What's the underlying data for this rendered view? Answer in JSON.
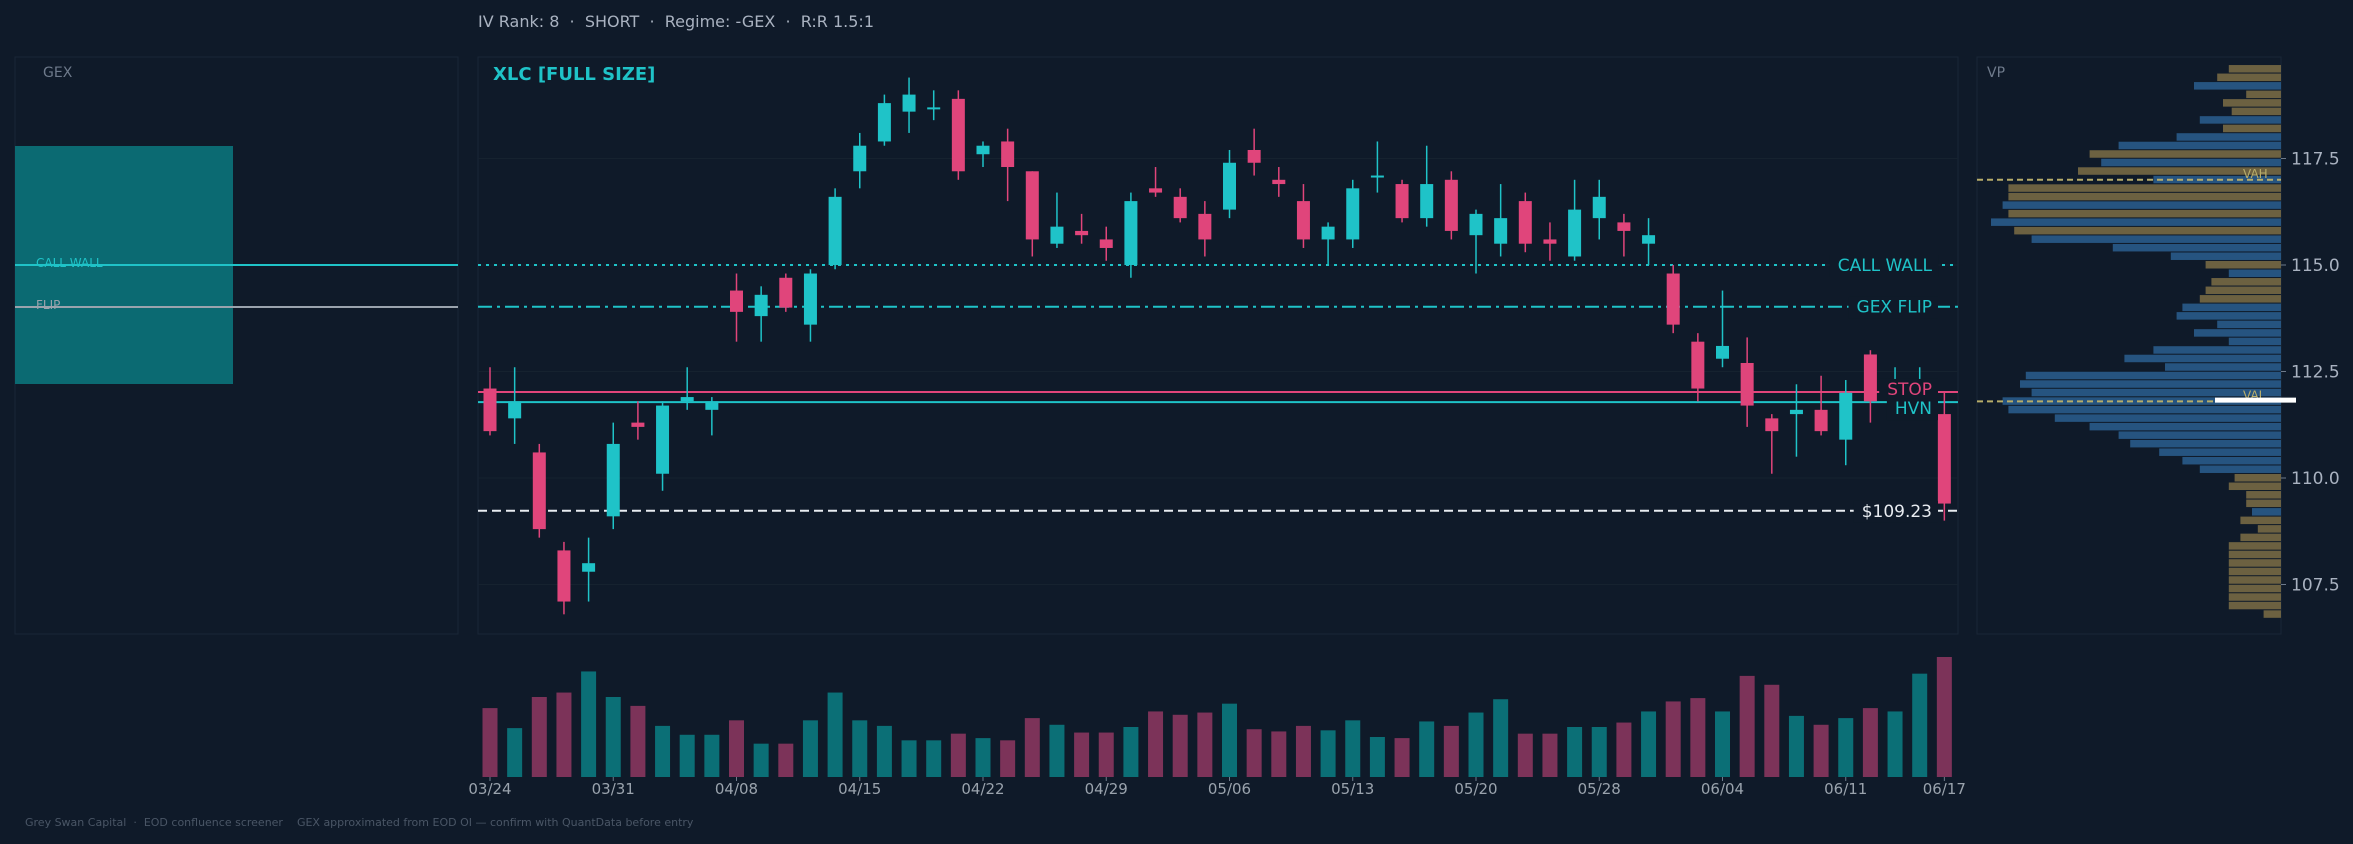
{
  "header": {
    "summary": "IV Rank: 8  ·  SHORT  ·  Regime: -GEX  ·  R:R 1.5:1"
  },
  "footer": {
    "text": "Grey Swan Capital  ·  EOD confluence screener    GEX approximated from EOD OI — confirm with QuantData before entry"
  },
  "colors": {
    "background": "#0f1a29",
    "up": "#1fc3c8",
    "down": "#e0457b",
    "stop": "#e0457b",
    "hvn": "#1fc3c8",
    "call_wall": "#1fc3c8",
    "flip": "#1fc3c8",
    "price_line": "#e8ecf1",
    "gex_bar": "#0b6a72",
    "vp_blue": "#2a5f8f",
    "vp_gold": "#7d6f45"
  },
  "gex_panel": {
    "title": "GEX",
    "call_wall_label": "CALL WALL",
    "flip_label": "FLIP"
  },
  "vp_panel": {
    "title": "VP",
    "vah_label": "VAH",
    "val_label": "VAL",
    "vah_price": 117.0,
    "val_price": 111.8
  },
  "chart_data": {
    "type": "candlestick",
    "title": "XLC  [FULL SIZE]",
    "ylim": [
      106.5,
      120.0
    ],
    "yticks": [
      107.5,
      110.0,
      112.5,
      115.0,
      117.5
    ],
    "xtick_labels": [
      "03/24",
      "03/31",
      "04/08",
      "04/15",
      "04/22",
      "04/29",
      "05/06",
      "05/13",
      "05/20",
      "05/28",
      "06/04",
      "06/11",
      "06/17"
    ],
    "xtick_index": [
      0,
      5,
      10,
      15,
      20,
      25,
      30,
      35,
      40,
      45,
      50,
      55,
      59
    ],
    "levels": [
      {
        "name": "CALL WALL",
        "price": 115.0,
        "style": "dotted"
      },
      {
        "name": "GEX FLIP",
        "price": 114.02,
        "style": "dashdot"
      },
      {
        "name": "STOP",
        "price": 112.02,
        "style": "solid"
      },
      {
        "name": "HVN",
        "price": 111.78,
        "style": "solid"
      },
      {
        "name": "$109.23",
        "price": 109.23,
        "style": "dashed"
      }
    ],
    "ohlc": [
      [
        112.1,
        112.6,
        111.0,
        111.1
      ],
      [
        111.4,
        112.6,
        110.8,
        111.8
      ],
      [
        110.6,
        110.8,
        108.6,
        108.8
      ],
      [
        108.3,
        108.5,
        106.8,
        107.1
      ],
      [
        107.8,
        108.6,
        107.1,
        108.0
      ],
      [
        109.1,
        111.3,
        108.8,
        110.8
      ],
      [
        111.3,
        111.8,
        110.9,
        111.2
      ],
      [
        110.1,
        111.8,
        109.7,
        111.7
      ],
      [
        111.8,
        112.6,
        111.6,
        111.9
      ],
      [
        111.6,
        111.9,
        111.0,
        111.8
      ],
      [
        114.4,
        114.8,
        113.2,
        113.9
      ],
      [
        113.8,
        114.5,
        113.2,
        114.3
      ],
      [
        114.7,
        114.8,
        113.9,
        114.0
      ],
      [
        113.6,
        114.9,
        113.2,
        114.8
      ],
      [
        115.0,
        116.8,
        114.9,
        116.6
      ],
      [
        117.2,
        118.1,
        116.8,
        117.8
      ],
      [
        117.9,
        119.0,
        117.8,
        118.8
      ],
      [
        118.6,
        119.4,
        118.1,
        119.0
      ],
      [
        118.7,
        119.1,
        118.4,
        118.7
      ],
      [
        118.9,
        119.1,
        117.0,
        117.2
      ],
      [
        117.6,
        117.9,
        117.3,
        117.8
      ],
      [
        117.9,
        118.2,
        116.5,
        117.3
      ],
      [
        117.2,
        117.2,
        115.2,
        115.6
      ],
      [
        115.5,
        116.7,
        115.4,
        115.9
      ],
      [
        115.8,
        116.2,
        115.5,
        115.7
      ],
      [
        115.6,
        115.9,
        115.1,
        115.4
      ],
      [
        115.0,
        116.7,
        114.7,
        116.5
      ],
      [
        116.8,
        117.3,
        116.6,
        116.7
      ],
      [
        116.6,
        116.8,
        116.0,
        116.1
      ],
      [
        116.2,
        116.5,
        115.2,
        115.6
      ],
      [
        116.3,
        117.7,
        116.1,
        117.4
      ],
      [
        117.7,
        118.2,
        117.1,
        117.4
      ],
      [
        117.0,
        117.3,
        116.6,
        116.9
      ],
      [
        116.5,
        116.9,
        115.4,
        115.6
      ],
      [
        115.6,
        116.0,
        115.0,
        115.9
      ],
      [
        115.6,
        117.0,
        115.4,
        116.8
      ],
      [
        117.1,
        117.9,
        116.7,
        117.1
      ],
      [
        116.9,
        117.0,
        116.0,
        116.1
      ],
      [
        116.1,
        117.8,
        115.9,
        116.9
      ],
      [
        117.0,
        117.2,
        115.6,
        115.8
      ],
      [
        115.7,
        116.3,
        114.8,
        116.2
      ],
      [
        115.5,
        116.9,
        115.2,
        116.1
      ],
      [
        116.5,
        116.7,
        115.3,
        115.5
      ],
      [
        115.6,
        116.0,
        115.1,
        115.5
      ],
      [
        115.2,
        117.0,
        115.1,
        116.3
      ],
      [
        116.1,
        117.0,
        115.6,
        116.6
      ],
      [
        116.0,
        116.2,
        115.2,
        115.8
      ],
      [
        115.5,
        116.1,
        115.0,
        115.7
      ],
      [
        114.8,
        115.0,
        113.4,
        113.6
      ],
      [
        113.2,
        113.4,
        111.8,
        112.1
      ],
      [
        112.8,
        114.4,
        112.6,
        113.1
      ],
      [
        112.7,
        113.3,
        111.2,
        111.7
      ],
      [
        111.4,
        111.5,
        110.1,
        111.1
      ],
      [
        111.5,
        112.2,
        110.5,
        111.6
      ],
      [
        111.6,
        112.4,
        111.0,
        111.1
      ],
      [
        110.9,
        112.3,
        110.3,
        112.0
      ],
      [
        112.9,
        113.0,
        111.3,
        111.8
      ],
      [
        112.2,
        112.6,
        112.2,
        112.2
      ],
      [
        112.3,
        112.6,
        112.1,
        112.3
      ],
      [
        111.5,
        112.0,
        109.0,
        109.4
      ]
    ],
    "volume": [
      62,
      44,
      72,
      76,
      95,
      72,
      64,
      46,
      38,
      38,
      51,
      30,
      30,
      51,
      76,
      51,
      46,
      33,
      33,
      39,
      35,
      33,
      53,
      47,
      40,
      40,
      45,
      59,
      56,
      58,
      66,
      43,
      41,
      46,
      42,
      51,
      36,
      35,
      50,
      46,
      58,
      70,
      39,
      39,
      45,
      45,
      49,
      59,
      68,
      71,
      59,
      91,
      83,
      55,
      47,
      53,
      62,
      59,
      93,
      108
    ]
  }
}
